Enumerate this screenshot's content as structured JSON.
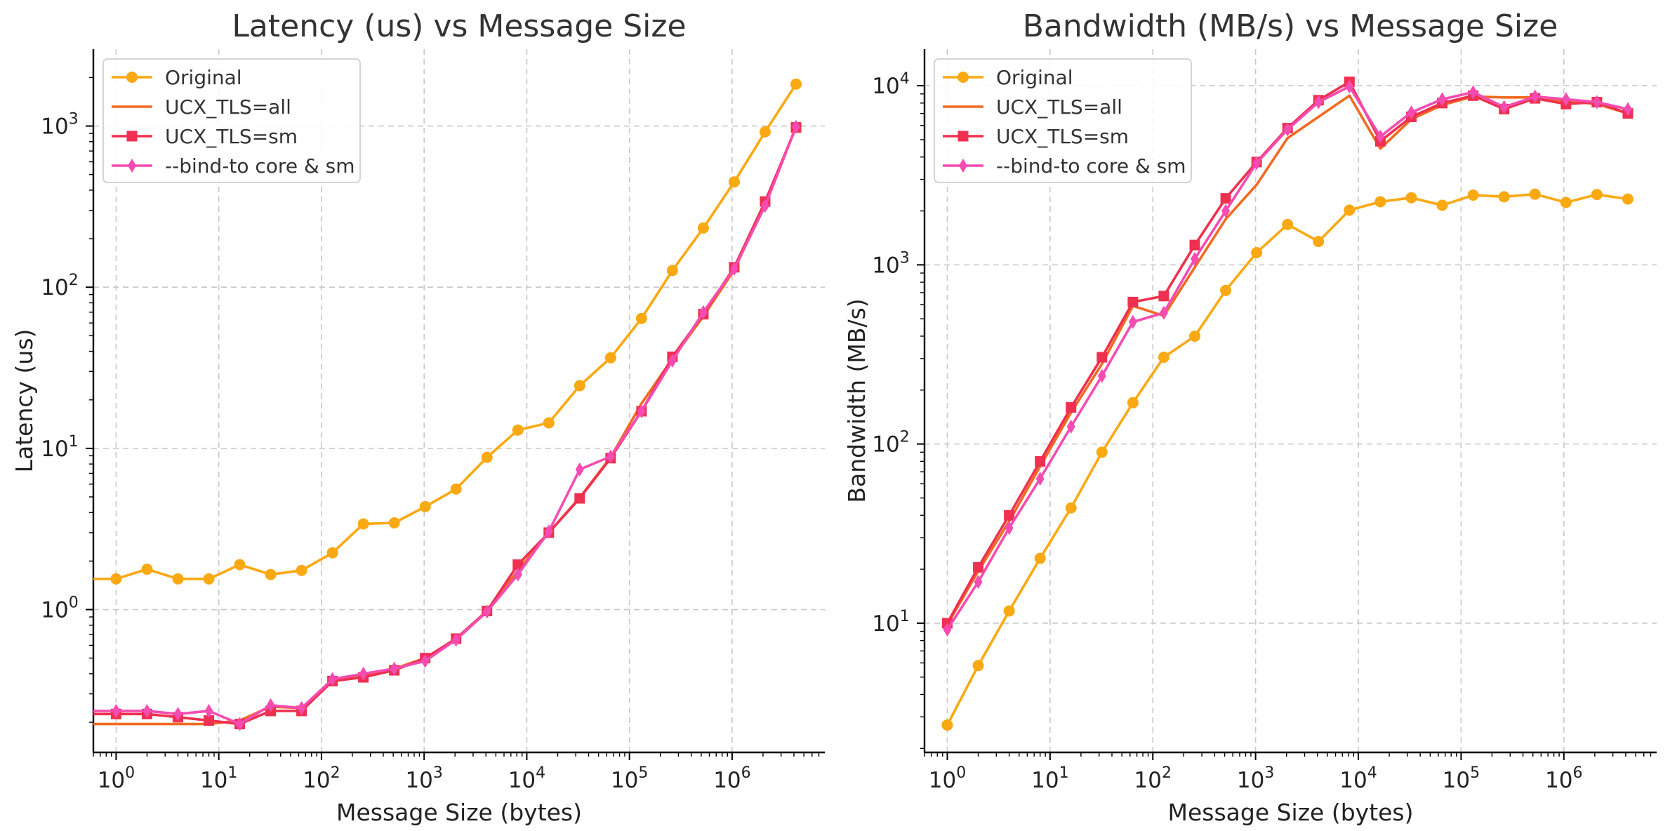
{
  "chart_data": [
    {
      "type": "line",
      "title": "Latency (us) vs Message Size",
      "xlabel": "Message Size (bytes)",
      "ylabel": "Latency (us)",
      "xscale": "log",
      "yscale": "log",
      "xlim": [
        0.6,
        8000000
      ],
      "ylim": [
        0.13,
        3000
      ],
      "xticks": [
        1,
        10,
        100,
        1000,
        10000,
        100000,
        1000000
      ],
      "yticks": [
        1,
        10,
        100,
        1000
      ],
      "grid": true,
      "legend_position": "top-left",
      "x": [
        1,
        2,
        4,
        8,
        16,
        32,
        64,
        128,
        256,
        512,
        1024,
        2048,
        4096,
        8192,
        16384,
        32768,
        65536,
        131072,
        262144,
        524288,
        1048576,
        2097152,
        4194304
      ],
      "series": [
        {
          "name": "Original",
          "color": "#FBA912",
          "marker": "circle",
          "values": [
            1.55,
            1.78,
            1.55,
            1.55,
            1.9,
            1.65,
            1.75,
            2.25,
            3.4,
            3.45,
            4.35,
            5.6,
            8.8,
            13,
            14.4,
            24.5,
            36.5,
            64,
            127,
            233,
            450,
            920,
            1820
          ]
        },
        {
          "name": "UCX_TLS=all",
          "color": "#F26A21",
          "marker": "none",
          "values": [
            0.195,
            0.195,
            0.195,
            0.195,
            0.205,
            0.25,
            0.245,
            0.36,
            0.39,
            0.43,
            0.5,
            0.66,
            0.98,
            1.75,
            3.0,
            4.95,
            8.8,
            19,
            36,
            66,
            128,
            330,
            990
          ]
        },
        {
          "name": "UCX_TLS=sm",
          "color": "#EF3050",
          "marker": "square",
          "values": [
            0.225,
            0.225,
            0.215,
            0.205,
            0.195,
            0.235,
            0.235,
            0.36,
            0.38,
            0.42,
            0.5,
            0.66,
            0.98,
            1.9,
            3.0,
            4.9,
            8.7,
            17,
            37,
            68,
            133,
            340,
            980
          ]
        },
        {
          "name": "--bind-to core & sm",
          "color": "#F54CB2",
          "marker": "diamond",
          "values": [
            0.235,
            0.235,
            0.225,
            0.235,
            0.195,
            0.255,
            0.245,
            0.37,
            0.4,
            0.43,
            0.48,
            0.65,
            0.97,
            1.65,
            3.05,
            7.4,
            8.9,
            17,
            35,
            70,
            130,
            320,
            990
          ]
        }
      ]
    },
    {
      "type": "line",
      "title": "Bandwidth (MB/s) vs Message Size",
      "xlabel": "Message Size (bytes)",
      "ylabel": "Bandwidth (MB/s)",
      "xscale": "log",
      "yscale": "log",
      "xlim": [
        0.6,
        8000000
      ],
      "ylim": [
        1.9,
        16000
      ],
      "xticks": [
        1,
        10,
        100,
        1000,
        10000,
        100000,
        1000000
      ],
      "yticks": [
        10,
        100,
        1000,
        10000
      ],
      "grid": true,
      "legend_position": "top-left",
      "x": [
        1,
        2,
        4,
        8,
        16,
        32,
        64,
        128,
        256,
        512,
        1024,
        2048,
        4096,
        8192,
        16384,
        32768,
        65536,
        131072,
        262144,
        524288,
        1048576,
        2097152,
        4194304
      ],
      "series": [
        {
          "name": "Original",
          "color": "#FBA912",
          "marker": "circle",
          "values": [
            2.7,
            5.8,
            11.7,
            23,
            44,
            90,
            170,
            305,
            400,
            720,
            1170,
            1680,
            1350,
            2020,
            2250,
            2370,
            2150,
            2450,
            2400,
            2480,
            2230,
            2470,
            2330
          ]
        },
        {
          "name": "UCX_TLS=all",
          "color": "#F26A21",
          "marker": "none",
          "values": [
            9.8,
            19.5,
            37,
            75,
            150,
            280,
            590,
            520,
            970,
            1800,
            2800,
            5100,
            6700,
            8800,
            4450,
            6500,
            7800,
            8700,
            8600,
            8600,
            8200,
            7900,
            7000
          ]
        },
        {
          "name": "UCX_TLS=sm",
          "color": "#EF3050",
          "marker": "square",
          "values": [
            10,
            20.5,
            40,
            80,
            160,
            305,
            620,
            670,
            1290,
            2350,
            3750,
            5800,
            8300,
            10500,
            4900,
            6700,
            8000,
            8800,
            7400,
            8500,
            7900,
            8100,
            7000
          ]
        },
        {
          "name": "--bind-to core & sm",
          "color": "#F54CB2",
          "marker": "diamond",
          "values": [
            9.2,
            17,
            34,
            64,
            125,
            240,
            480,
            540,
            1080,
            2000,
            3700,
            5700,
            8100,
            9900,
            5200,
            7100,
            8400,
            9200,
            7600,
            8700,
            8400,
            8100,
            7400
          ]
        }
      ]
    }
  ]
}
